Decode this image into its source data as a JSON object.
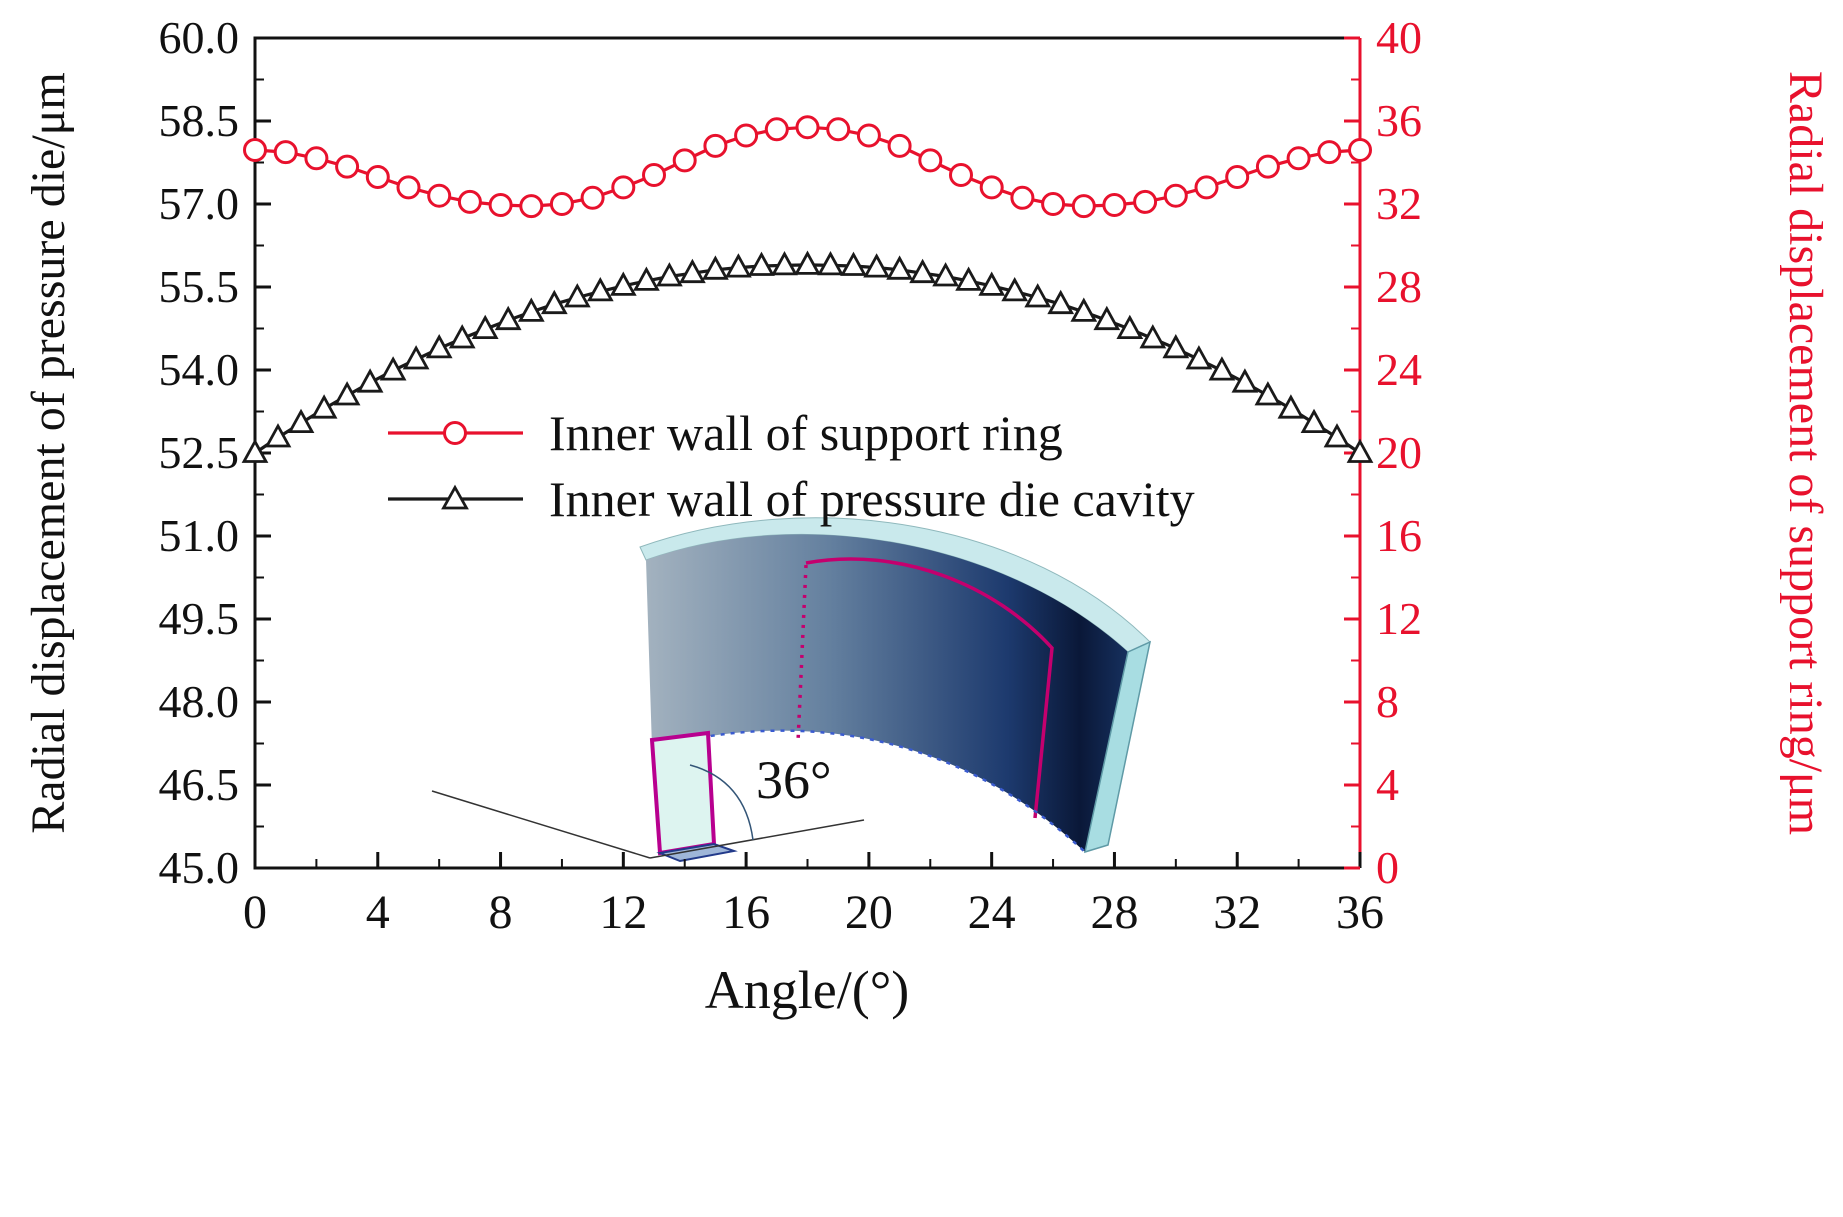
{
  "figure": {
    "background": "#ffffff"
  },
  "chart_data": {
    "type": "line",
    "title": "",
    "xlabel": "Angle/(°)",
    "x_range": [
      0,
      36
    ],
    "x_ticks": [
      "0",
      "4",
      "8",
      "12",
      "16",
      "20",
      "24",
      "28",
      "32",
      "36"
    ],
    "grid": false,
    "legend_position": "inside-center-left",
    "y_left": {
      "label": "Radial displacement of pressure die/μm",
      "color": "#111111",
      "range": [
        45.0,
        60.0
      ],
      "ticks": [
        "45.0",
        "46.5",
        "48.0",
        "49.5",
        "51.0",
        "52.5",
        "54.0",
        "55.5",
        "57.0",
        "58.5",
        "60.0"
      ]
    },
    "y_right": {
      "label": "Radial displacement of support ring/μm",
      "color": "#e8112d",
      "range": [
        0,
        40
      ],
      "ticks": [
        "0",
        "4",
        "8",
        "12",
        "16",
        "20",
        "24",
        "28",
        "32",
        "36",
        "40"
      ]
    },
    "series": [
      {
        "name": "Inner wall of support ring",
        "axis": "right",
        "marker": "circle",
        "color": "#e8112d",
        "x": [
          0,
          1,
          2,
          3,
          4,
          5,
          6,
          7,
          8,
          9,
          10,
          11,
          12,
          13,
          14,
          15,
          16,
          17,
          18,
          19,
          20,
          21,
          22,
          23,
          24,
          25,
          26,
          27,
          28,
          29,
          30,
          31,
          32,
          33,
          34,
          35,
          36
        ],
        "values": [
          34.6,
          34.5,
          34.2,
          33.8,
          33.3,
          32.8,
          32.4,
          32.1,
          31.95,
          31.9,
          32.0,
          32.3,
          32.8,
          33.4,
          34.1,
          34.8,
          35.3,
          35.6,
          35.7,
          35.6,
          35.3,
          34.8,
          34.1,
          33.4,
          32.8,
          32.3,
          32.0,
          31.9,
          31.95,
          32.1,
          32.4,
          32.8,
          33.3,
          33.8,
          34.2,
          34.5,
          34.6
        ]
      },
      {
        "name": "Inner wall of pressure die cavity",
        "axis": "left",
        "marker": "triangle",
        "color": "#1a1a1a",
        "x": [
          0,
          0.75,
          1.5,
          2.25,
          3,
          3.75,
          4.5,
          5.25,
          6,
          6.75,
          7.5,
          8.25,
          9,
          9.75,
          10.5,
          11.25,
          12,
          12.75,
          13.5,
          14.25,
          15,
          15.75,
          16.5,
          17.25,
          18,
          18.75,
          19.5,
          20.25,
          21,
          21.75,
          22.5,
          23.25,
          24,
          24.75,
          25.5,
          26.25,
          27,
          27.75,
          28.5,
          29.25,
          30,
          30.75,
          31.5,
          32.25,
          33,
          33.75,
          34.5,
          35.25,
          36
        ],
        "values": [
          52.5,
          52.78,
          53.04,
          53.3,
          53.54,
          53.77,
          53.99,
          54.19,
          54.39,
          54.57,
          54.74,
          54.9,
          55.05,
          55.19,
          55.31,
          55.42,
          55.52,
          55.61,
          55.69,
          55.75,
          55.81,
          55.85,
          55.88,
          55.89,
          55.9,
          55.89,
          55.88,
          55.85,
          55.81,
          55.75,
          55.69,
          55.61,
          55.52,
          55.42,
          55.31,
          55.19,
          55.05,
          54.9,
          54.74,
          54.57,
          54.39,
          54.19,
          53.99,
          53.77,
          53.54,
          53.3,
          53.04,
          52.78,
          52.5
        ]
      }
    ]
  },
  "inset": {
    "angle_label": "36°"
  }
}
